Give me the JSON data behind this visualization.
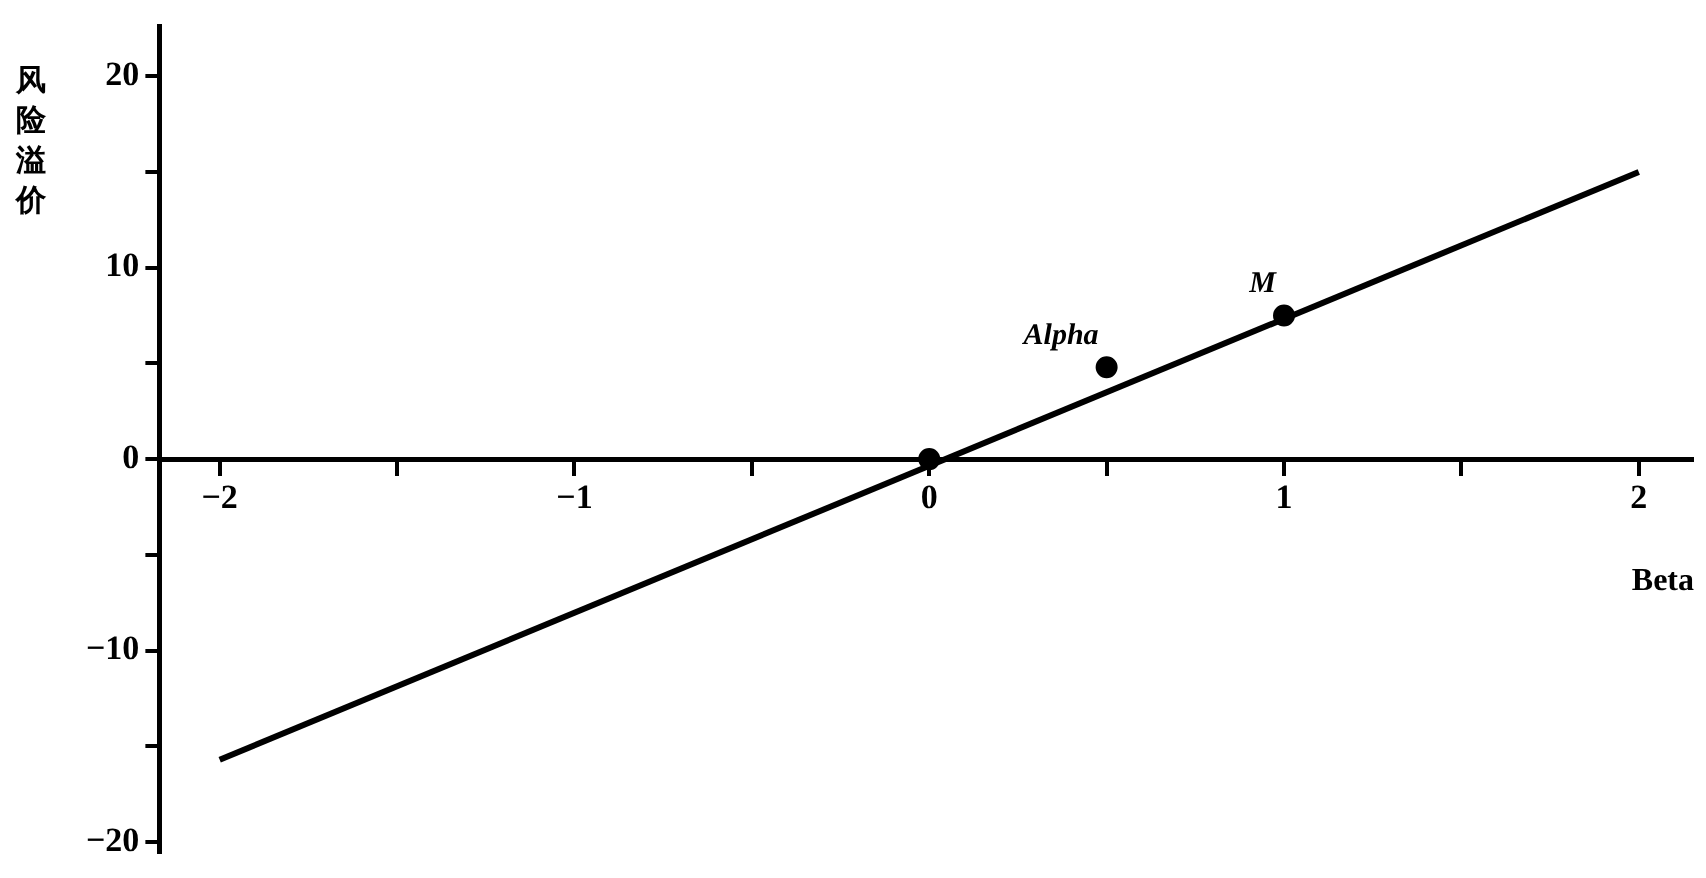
{
  "chart_data": {
    "type": "line",
    "xlabel": "Beta",
    "ylabel": "风险溢价",
    "xlim": [
      -2.17,
      2.15
    ],
    "ylim": [
      -20.5,
      22.6
    ],
    "xticks": [
      {
        "value": -2,
        "label": "−2"
      },
      {
        "value": -1.5,
        "label": null
      },
      {
        "value": -1,
        "label": "−1"
      },
      {
        "value": -0.5,
        "label": null
      },
      0,
      {
        "value": 0.5,
        "label": null
      },
      1,
      {
        "value": 1.5,
        "label": null
      },
      2
    ],
    "yticks": [
      {
        "value": -20,
        "label": "−20"
      },
      {
        "value": -15,
        "label": null
      },
      {
        "value": -10,
        "label": "−10"
      },
      {
        "value": -5,
        "label": null
      },
      0,
      {
        "value": 5,
        "label": null
      },
      10,
      {
        "value": 15,
        "label": null
      },
      20
    ],
    "series": [
      {
        "color": "#000000",
        "x": [
          -2,
          2
        ],
        "values": [
          -15.7,
          15
        ],
        "marker": "none",
        "line_style": "solid"
      },
      {
        "type": "scatter",
        "color": "#000000",
        "x": [
          0,
          0.5,
          1
        ],
        "values": [
          0,
          4.8,
          7.5
        ],
        "marker": "circle"
      }
    ],
    "annotations": [
      {
        "text": "Alpha",
        "x": 0.5,
        "y": 4.8
      },
      {
        "text": "M",
        "x": 1,
        "y": 7.5
      }
    ],
    "grid": false,
    "legend": false
  }
}
